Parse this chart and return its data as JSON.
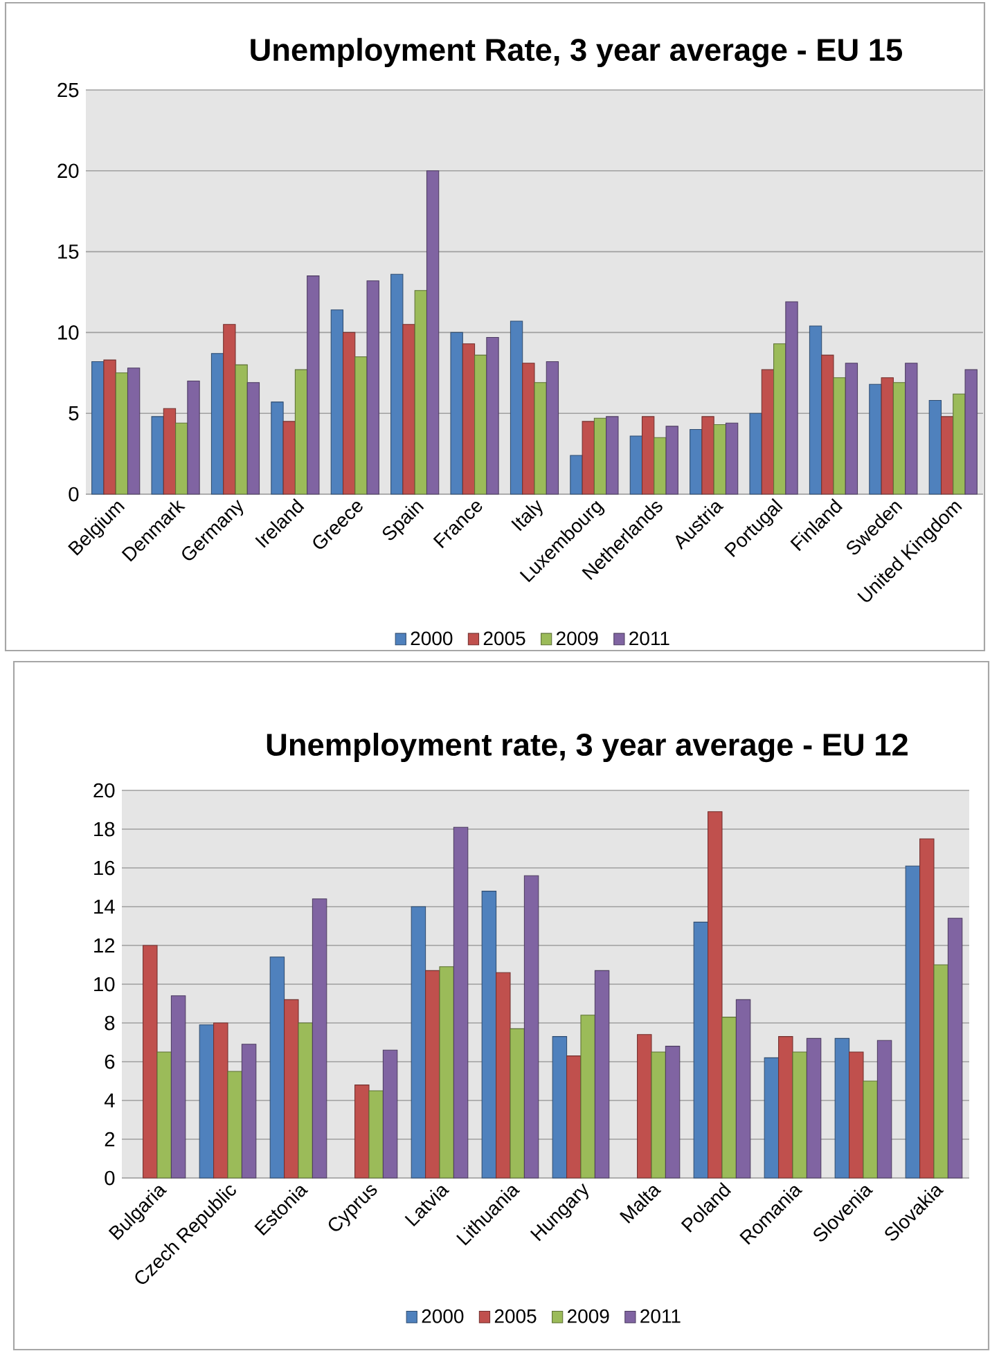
{
  "chart_data": [
    {
      "type": "bar",
      "title": "Unemployment Rate, 3 year average - EU 15",
      "categories": [
        "Belgium",
        "Denmark",
        "Germany",
        "Ireland",
        "Greece",
        "Spain",
        "France",
        "Italy",
        "Luxembourg",
        "Netherlands",
        "Austria",
        "Portugal",
        "Finland",
        "Sweden",
        "United Kingdom"
      ],
      "series": [
        {
          "name": "2000",
          "color": "#4f81bd",
          "values": [
            8.2,
            4.8,
            8.7,
            5.7,
            11.4,
            13.6,
            10.0,
            10.7,
            2.4,
            3.6,
            4.0,
            5.0,
            10.4,
            6.8,
            5.8
          ]
        },
        {
          "name": "2005",
          "color": "#c0504d",
          "values": [
            8.3,
            5.3,
            10.5,
            4.5,
            10.0,
            10.5,
            9.3,
            8.1,
            4.5,
            4.8,
            4.8,
            7.7,
            8.6,
            7.2,
            4.8
          ]
        },
        {
          "name": "2009",
          "color": "#9bbb59",
          "values": [
            7.5,
            4.4,
            8.0,
            7.7,
            8.5,
            12.6,
            8.6,
            6.9,
            4.7,
            3.5,
            4.3,
            9.3,
            7.2,
            6.9,
            6.2
          ]
        },
        {
          "name": "2011",
          "color": "#8064a2",
          "values": [
            7.8,
            7.0,
            6.9,
            13.5,
            13.2,
            20.0,
            9.7,
            8.2,
            4.8,
            4.2,
            4.4,
            11.9,
            8.1,
            8.1,
            7.7
          ]
        }
      ],
      "ylim": [
        0,
        25
      ],
      "yticks": [
        0,
        5,
        10,
        15,
        20,
        25
      ],
      "grid": "y",
      "legend": "bottom"
    },
    {
      "type": "bar",
      "title": "Unemployment rate, 3 year average - EU 12",
      "categories": [
        "Bulgaria",
        "Czech Republic",
        "Estonia",
        "Cyprus",
        "Latvia",
        "Lithuania",
        "Hungary",
        "Malta",
        "Poland",
        "Romania",
        "Slovenia",
        "Slovakia"
      ],
      "series": [
        {
          "name": "2000",
          "color": "#4f81bd",
          "values": [
            null,
            7.9,
            11.4,
            null,
            14.0,
            14.8,
            7.3,
            null,
            13.2,
            6.2,
            7.2,
            16.1
          ]
        },
        {
          "name": "2005",
          "color": "#c0504d",
          "values": [
            12.0,
            8.0,
            9.2,
            4.8,
            10.7,
            10.6,
            6.3,
            7.4,
            18.9,
            7.3,
            6.5,
            17.5
          ]
        },
        {
          "name": "2009",
          "color": "#9bbb59",
          "values": [
            6.5,
            5.5,
            8.0,
            4.5,
            10.9,
            7.7,
            8.4,
            6.5,
            8.3,
            6.5,
            5.0,
            11.0
          ]
        },
        {
          "name": "2011",
          "color": "#8064a2",
          "values": [
            9.4,
            6.9,
            14.4,
            6.6,
            18.1,
            15.6,
            10.7,
            6.8,
            9.2,
            7.2,
            7.1,
            13.4
          ]
        }
      ],
      "ylim": [
        0,
        20
      ],
      "yticks": [
        0,
        2,
        4,
        6,
        8,
        10,
        12,
        14,
        16,
        18,
        20
      ],
      "grid": "y",
      "legend": "bottom"
    }
  ]
}
